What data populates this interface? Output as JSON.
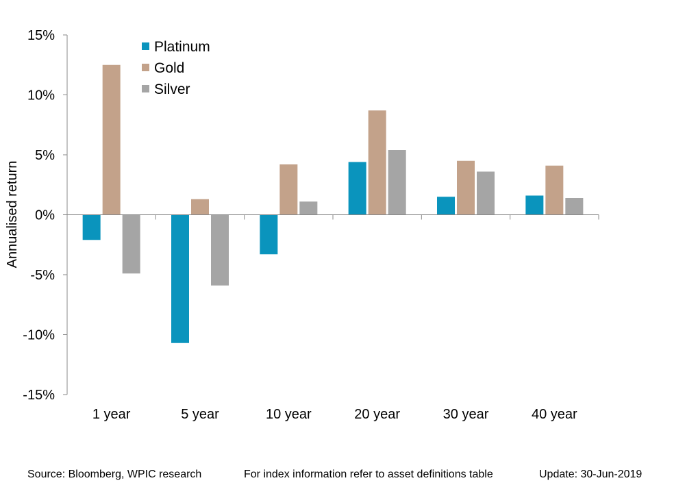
{
  "chart_data": {
    "type": "bar",
    "title": "",
    "xlabel": "",
    "ylabel": "Annualised return",
    "ylim": [
      -15,
      15
    ],
    "yticks": [
      15,
      10,
      5,
      0,
      -5,
      -10,
      -15
    ],
    "ytick_labels": [
      "15%",
      "10%",
      "5%",
      "0%",
      "-5%",
      "-10%",
      "-15%"
    ],
    "categories": [
      "1 year",
      "5 year",
      "10 year",
      "20 year",
      "30 year",
      "40 year"
    ],
    "series": [
      {
        "name": "Platinum",
        "color": "#0a94bd",
        "values": [
          -2.1,
          -10.7,
          -3.3,
          4.4,
          1.5,
          1.6
        ]
      },
      {
        "name": "Gold",
        "color": "#c3a28a",
        "values": [
          12.5,
          1.3,
          4.2,
          8.7,
          4.5,
          4.1
        ]
      },
      {
        "name": "Silver",
        "color": "#a5a5a5",
        "values": [
          -4.9,
          -5.9,
          1.1,
          5.4,
          3.6,
          1.4
        ]
      }
    ],
    "grid": false,
    "legend_position": "top-left"
  },
  "footer": {
    "source": "Source: Bloomberg, WPIC research",
    "note": "For index information refer to asset definitions table",
    "update": "Update: 30-Jun-2019"
  }
}
